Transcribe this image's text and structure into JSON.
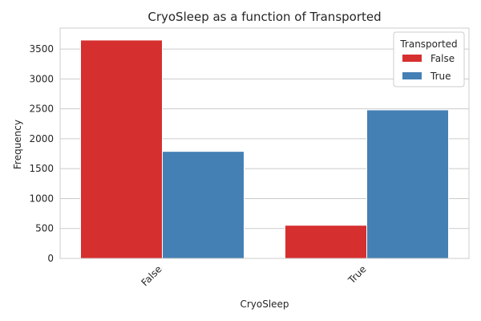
{
  "chart_data": {
    "type": "bar",
    "title": "CryoSleep as a function of Transported",
    "xlabel": "CryoSleep",
    "ylabel": "Frequency",
    "categories": [
      "False",
      "True"
    ],
    "ylim": [
      0,
      3850
    ],
    "yticks": [
      0,
      500,
      1000,
      1500,
      2000,
      2500,
      3000,
      3500
    ],
    "grid": "horizontal",
    "legend": {
      "title": "Transported",
      "placement": "top-right"
    },
    "series": [
      {
        "name": "False",
        "color": "#d62f2f",
        "values": [
          3650,
          554
        ]
      },
      {
        "name": "True",
        "color": "#4580b5",
        "values": [
          1789,
          2483
        ]
      }
    ]
  }
}
